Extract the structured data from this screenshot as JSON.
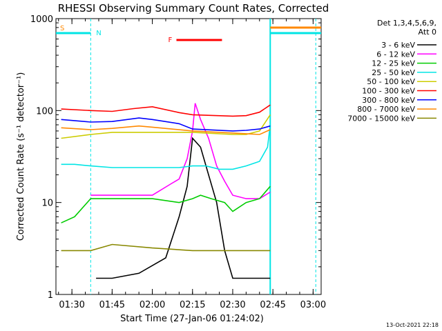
{
  "chart_data": {
    "type": "line",
    "title": "RHESSI Observing Summary Count Rates, Corrected",
    "xlabel": "Start Time (27-Jan-06 01:24:02)",
    "ylabel": "Corrected Count Rate (s⁻¹ detector⁻¹)",
    "y_scale": "log",
    "ylim": [
      1,
      1000
    ],
    "y_tick_labels": [
      "1",
      "10",
      "100",
      "1000"
    ],
    "x_tick_labels": [
      "01:30",
      "01:45",
      "02:00",
      "02:15",
      "02:30",
      "02:45",
      "03:00"
    ],
    "legend_header": [
      "Det 1,3,4,5,6,9,",
      "Att 0"
    ],
    "legend_position": "right",
    "series": [
      {
        "name": "3 - 6 keV",
        "color": "#000000",
        "x": [
          "01:39",
          "01:45",
          "01:55",
          "02:05",
          "02:10",
          "02:13",
          "02:15",
          "02:18",
          "02:21",
          "02:24",
          "02:27",
          "02:30",
          "02:35",
          "02:40",
          "02:44"
        ],
        "y": [
          1.5,
          1.5,
          1.7,
          2.5,
          7,
          15,
          50,
          40,
          20,
          10,
          3,
          1.5,
          1.5,
          1.5,
          1.5
        ]
      },
      {
        "name": "6 - 12 keV",
        "color": "#ff00ff",
        "x": [
          "01:37",
          "01:45",
          "02:00",
          "02:07",
          "02:10",
          "02:13",
          "02:15",
          "02:16",
          "02:18",
          "02:21",
          "02:24",
          "02:27",
          "02:30",
          "02:35",
          "02:40",
          "02:44"
        ],
        "y": [
          12,
          12,
          12,
          16,
          18,
          30,
          60,
          120,
          80,
          50,
          25,
          17,
          12,
          11,
          11,
          13
        ]
      },
      {
        "name": "12 - 25 keV",
        "color": "#00cc00",
        "x": [
          "01:26",
          "01:31",
          "01:37",
          "01:45",
          "02:00",
          "02:10",
          "02:15",
          "02:18",
          "02:22",
          "02:27",
          "02:30",
          "02:35",
          "02:40",
          "02:44"
        ],
        "y": [
          6,
          7,
          11,
          11,
          11,
          10,
          11,
          12,
          11,
          10,
          8,
          10,
          11,
          15
        ]
      },
      {
        "name": "25 - 50 keV",
        "color": "#00e5e5",
        "x": [
          "01:26",
          "01:31",
          "01:37",
          "01:45",
          "02:00",
          "02:10",
          "02:15",
          "02:20",
          "02:25",
          "02:30",
          "02:35",
          "02:40",
          "02:43",
          "02:44"
        ],
        "y": [
          26,
          26,
          25,
          24,
          24,
          24,
          25,
          25,
          23,
          23,
          25,
          28,
          40,
          70
        ]
      },
      {
        "name": "50 - 100 keV",
        "color": "#cccc00",
        "x": [
          "01:26",
          "01:37",
          "01:45",
          "02:00",
          "02:15",
          "02:30",
          "02:35",
          "02:40",
          "02:44"
        ],
        "y": [
          50,
          55,
          58,
          58,
          58,
          55,
          55,
          60,
          90
        ]
      },
      {
        "name": "100 - 300 keV",
        "color": "#ff0000",
        "x": [
          "01:26",
          "01:37",
          "01:45",
          "01:53",
          "02:00",
          "02:10",
          "02:15",
          "02:30",
          "02:35",
          "02:40",
          "02:44"
        ],
        "y": [
          104,
          100,
          98,
          105,
          110,
          95,
          90,
          87,
          88,
          96,
          115
        ]
      },
      {
        "name": "300 - 800 keV",
        "color": "#0000ff",
        "x": [
          "01:26",
          "01:37",
          "01:45",
          "01:55",
          "02:00",
          "02:10",
          "02:15",
          "02:30",
          "02:35",
          "02:40",
          "02:44"
        ],
        "y": [
          80,
          75,
          76,
          83,
          80,
          72,
          63,
          60,
          61,
          63,
          68
        ]
      },
      {
        "name": "800 - 7000 keV",
        "color": "#ff8800",
        "x": [
          "01:26",
          "01:37",
          "01:45",
          "01:55",
          "02:00",
          "02:15",
          "02:30",
          "02:35",
          "02:40",
          "02:44"
        ],
        "y": [
          65,
          62,
          64,
          68,
          66,
          60,
          57,
          56,
          55,
          62
        ]
      },
      {
        "name": "7000 - 15000 keV",
        "color": "#888800",
        "x": [
          "01:26",
          "01:37",
          "01:45",
          "02:00",
          "02:15",
          "02:30",
          "02:44"
        ],
        "y": [
          3,
          3,
          3.5,
          3.2,
          3,
          3,
          3
        ]
      }
    ],
    "annotations": [
      {
        "text": "S",
        "color": "#ff8800"
      },
      {
        "text": "N",
        "color": "#00e5e5"
      },
      {
        "text": "F",
        "color": "#ff0000"
      }
    ],
    "footer_timestamp": "13-Oct-2021 22:18"
  }
}
